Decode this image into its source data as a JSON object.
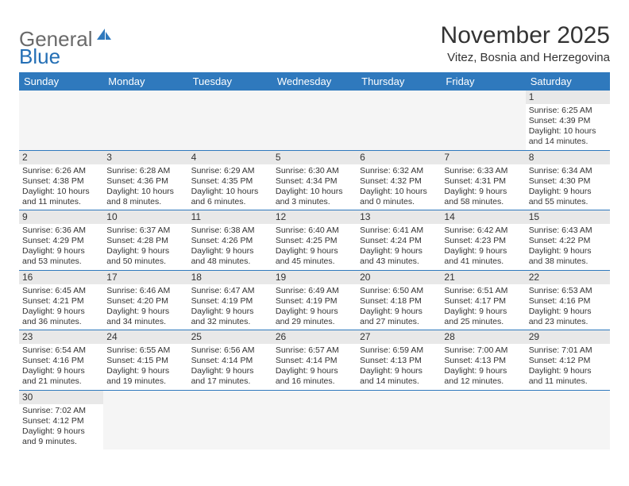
{
  "logo": {
    "part1": "General",
    "part2": "Blue"
  },
  "title": "November 2025",
  "subtitle": "Vitez, Bosnia and Herzegovina",
  "day_headers": [
    "Sunday",
    "Monday",
    "Tuesday",
    "Wednesday",
    "Thursday",
    "Friday",
    "Saturday"
  ],
  "colors": {
    "header_bg": "#2f79bd",
    "header_text": "#ffffff",
    "daynum_bg": "#e8e8e8",
    "border": "#2f79bd",
    "text": "#333333"
  },
  "weeks": [
    [
      null,
      null,
      null,
      null,
      null,
      null,
      {
        "n": "1",
        "sr": "Sunrise: 6:25 AM",
        "ss": "Sunset: 4:39 PM",
        "dl": "Daylight: 10 hours and 14 minutes."
      }
    ],
    [
      {
        "n": "2",
        "sr": "Sunrise: 6:26 AM",
        "ss": "Sunset: 4:38 PM",
        "dl": "Daylight: 10 hours and 11 minutes."
      },
      {
        "n": "3",
        "sr": "Sunrise: 6:28 AM",
        "ss": "Sunset: 4:36 PM",
        "dl": "Daylight: 10 hours and 8 minutes."
      },
      {
        "n": "4",
        "sr": "Sunrise: 6:29 AM",
        "ss": "Sunset: 4:35 PM",
        "dl": "Daylight: 10 hours and 6 minutes."
      },
      {
        "n": "5",
        "sr": "Sunrise: 6:30 AM",
        "ss": "Sunset: 4:34 PM",
        "dl": "Daylight: 10 hours and 3 minutes."
      },
      {
        "n": "6",
        "sr": "Sunrise: 6:32 AM",
        "ss": "Sunset: 4:32 PM",
        "dl": "Daylight: 10 hours and 0 minutes."
      },
      {
        "n": "7",
        "sr": "Sunrise: 6:33 AM",
        "ss": "Sunset: 4:31 PM",
        "dl": "Daylight: 9 hours and 58 minutes."
      },
      {
        "n": "8",
        "sr": "Sunrise: 6:34 AM",
        "ss": "Sunset: 4:30 PM",
        "dl": "Daylight: 9 hours and 55 minutes."
      }
    ],
    [
      {
        "n": "9",
        "sr": "Sunrise: 6:36 AM",
        "ss": "Sunset: 4:29 PM",
        "dl": "Daylight: 9 hours and 53 minutes."
      },
      {
        "n": "10",
        "sr": "Sunrise: 6:37 AM",
        "ss": "Sunset: 4:28 PM",
        "dl": "Daylight: 9 hours and 50 minutes."
      },
      {
        "n": "11",
        "sr": "Sunrise: 6:38 AM",
        "ss": "Sunset: 4:26 PM",
        "dl": "Daylight: 9 hours and 48 minutes."
      },
      {
        "n": "12",
        "sr": "Sunrise: 6:40 AM",
        "ss": "Sunset: 4:25 PM",
        "dl": "Daylight: 9 hours and 45 minutes."
      },
      {
        "n": "13",
        "sr": "Sunrise: 6:41 AM",
        "ss": "Sunset: 4:24 PM",
        "dl": "Daylight: 9 hours and 43 minutes."
      },
      {
        "n": "14",
        "sr": "Sunrise: 6:42 AM",
        "ss": "Sunset: 4:23 PM",
        "dl": "Daylight: 9 hours and 41 minutes."
      },
      {
        "n": "15",
        "sr": "Sunrise: 6:43 AM",
        "ss": "Sunset: 4:22 PM",
        "dl": "Daylight: 9 hours and 38 minutes."
      }
    ],
    [
      {
        "n": "16",
        "sr": "Sunrise: 6:45 AM",
        "ss": "Sunset: 4:21 PM",
        "dl": "Daylight: 9 hours and 36 minutes."
      },
      {
        "n": "17",
        "sr": "Sunrise: 6:46 AM",
        "ss": "Sunset: 4:20 PM",
        "dl": "Daylight: 9 hours and 34 minutes."
      },
      {
        "n": "18",
        "sr": "Sunrise: 6:47 AM",
        "ss": "Sunset: 4:19 PM",
        "dl": "Daylight: 9 hours and 32 minutes."
      },
      {
        "n": "19",
        "sr": "Sunrise: 6:49 AM",
        "ss": "Sunset: 4:19 PM",
        "dl": "Daylight: 9 hours and 29 minutes."
      },
      {
        "n": "20",
        "sr": "Sunrise: 6:50 AM",
        "ss": "Sunset: 4:18 PM",
        "dl": "Daylight: 9 hours and 27 minutes."
      },
      {
        "n": "21",
        "sr": "Sunrise: 6:51 AM",
        "ss": "Sunset: 4:17 PM",
        "dl": "Daylight: 9 hours and 25 minutes."
      },
      {
        "n": "22",
        "sr": "Sunrise: 6:53 AM",
        "ss": "Sunset: 4:16 PM",
        "dl": "Daylight: 9 hours and 23 minutes."
      }
    ],
    [
      {
        "n": "23",
        "sr": "Sunrise: 6:54 AM",
        "ss": "Sunset: 4:16 PM",
        "dl": "Daylight: 9 hours and 21 minutes."
      },
      {
        "n": "24",
        "sr": "Sunrise: 6:55 AM",
        "ss": "Sunset: 4:15 PM",
        "dl": "Daylight: 9 hours and 19 minutes."
      },
      {
        "n": "25",
        "sr": "Sunrise: 6:56 AM",
        "ss": "Sunset: 4:14 PM",
        "dl": "Daylight: 9 hours and 17 minutes."
      },
      {
        "n": "26",
        "sr": "Sunrise: 6:57 AM",
        "ss": "Sunset: 4:14 PM",
        "dl": "Daylight: 9 hours and 16 minutes."
      },
      {
        "n": "27",
        "sr": "Sunrise: 6:59 AM",
        "ss": "Sunset: 4:13 PM",
        "dl": "Daylight: 9 hours and 14 minutes."
      },
      {
        "n": "28",
        "sr": "Sunrise: 7:00 AM",
        "ss": "Sunset: 4:13 PM",
        "dl": "Daylight: 9 hours and 12 minutes."
      },
      {
        "n": "29",
        "sr": "Sunrise: 7:01 AM",
        "ss": "Sunset: 4:12 PM",
        "dl": "Daylight: 9 hours and 11 minutes."
      }
    ],
    [
      {
        "n": "30",
        "sr": "Sunrise: 7:02 AM",
        "ss": "Sunset: 4:12 PM",
        "dl": "Daylight: 9 hours and 9 minutes."
      },
      null,
      null,
      null,
      null,
      null,
      null
    ]
  ]
}
